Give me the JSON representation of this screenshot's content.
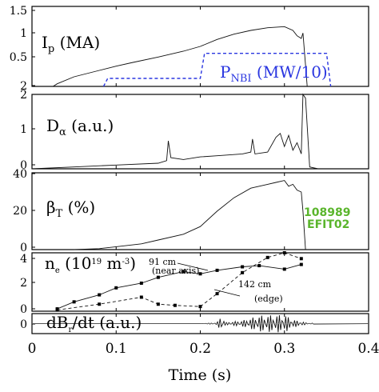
{
  "chart_data": {
    "type": "line",
    "xlabel": "Time (s)",
    "xlim": [
      0,
      0.4
    ],
    "xticks": [
      "0",
      "0.1",
      "0.2",
      "0.3",
      "0.4"
    ],
    "panels": [
      {
        "id": "ip",
        "label_main": "I",
        "label_sub": "p",
        "label_tail": " (MA)",
        "yticks": [
          "1.5",
          "1",
          "0.5",
          "2"
        ],
        "ylim": [
          0,
          1.5
        ],
        "series": [
          {
            "name": "Ip",
            "x": [
              0.025,
              0.03,
              0.05,
              0.08,
              0.1,
              0.12,
              0.15,
              0.18,
              0.2,
              0.22,
              0.24,
              0.26,
              0.28,
              0.3,
              0.31,
              0.315,
              0.32,
              0.322,
              0.325,
              0.327
            ],
            "y": [
              0.0,
              0.05,
              0.18,
              0.3,
              0.38,
              0.45,
              0.55,
              0.66,
              0.75,
              0.88,
              0.98,
              1.05,
              1.1,
              1.12,
              1.05,
              0.95,
              0.9,
              1.0,
              0.4,
              0.0
            ]
          }
        ],
        "nbi": {
          "label_main": "P",
          "label_sub": "NBI",
          "label_tail": " (MW/10)",
          "x": [
            0.085,
            0.09,
            0.2,
            0.205,
            0.35,
            0.355
          ],
          "y": [
            0.0,
            0.15,
            0.15,
            0.62,
            0.62,
            0.0
          ]
        }
      },
      {
        "id": "dalpha",
        "label_main": "D",
        "label_sub": "α",
        "label_tail": " (a.u.)",
        "yticks": [
          "2",
          "1",
          "0"
        ],
        "ylim": [
          0,
          2
        ],
        "series": [
          {
            "name": "Dalpha",
            "x": [
              0.0,
              0.05,
              0.1,
              0.15,
              0.16,
              0.162,
              0.165,
              0.18,
              0.2,
              0.22,
              0.25,
              0.26,
              0.262,
              0.265,
              0.28,
              0.29,
              0.295,
              0.3,
              0.305,
              0.31,
              0.315,
              0.32,
              0.322,
              0.325,
              0.33,
              0.34
            ],
            "y": [
              0.0,
              0.05,
              0.1,
              0.15,
              0.22,
              0.75,
              0.3,
              0.25,
              0.32,
              0.35,
              0.4,
              0.45,
              0.8,
              0.4,
              0.45,
              0.85,
              0.95,
              0.6,
              0.9,
              0.5,
              0.7,
              0.4,
              2.0,
              1.9,
              0.05,
              0.0
            ]
          }
        ]
      },
      {
        "id": "beta",
        "label_main": "β",
        "label_sub": "T",
        "label_tail": " (%)",
        "yticks": [
          "40",
          "20",
          "0"
        ],
        "ylim": [
          0,
          40
        ],
        "series": [
          {
            "name": "BetaT",
            "x": [
              0.05,
              0.08,
              0.1,
              0.13,
              0.15,
              0.18,
              0.2,
              0.22,
              0.24,
              0.26,
              0.28,
              0.29,
              0.3,
              0.305,
              0.31,
              0.315,
              0.32,
              0.322,
              0.325
            ],
            "y": [
              0.0,
              0.5,
              1.5,
              3,
              5,
              8,
              12,
              20,
              27,
              32,
              34,
              35,
              36,
              33,
              34,
              31,
              30,
              20,
              0.0
            ]
          }
        ],
        "shot": [
          "108989",
          "EFIT02"
        ]
      },
      {
        "id": "ne",
        "label_main": "n",
        "label_sub": "e",
        "label_tail": " (10",
        "label_sup": "19",
        "label_tail2": " m",
        "label_sup2": "-3",
        "label_end": ")",
        "yticks": [
          "4",
          "2",
          "0"
        ],
        "ylim": [
          0,
          5
        ],
        "series": [
          {
            "name": "91 cm (near axis)",
            "x": [
              0.03,
              0.05,
              0.08,
              0.1,
              0.13,
              0.15,
              0.18,
              0.2,
              0.22,
              0.25,
              0.27,
              0.3,
              0.32
            ],
            "y": [
              0.2,
              0.8,
              1.4,
              2.0,
              2.4,
              2.9,
              3.4,
              3.2,
              3.5,
              3.8,
              3.9,
              3.6,
              4.0
            ]
          },
          {
            "name": "142 cm (edge)",
            "x": [
              0.03,
              0.08,
              0.13,
              0.15,
              0.17,
              0.2,
              0.22,
              0.25,
              0.28,
              0.3,
              0.32
            ],
            "y": [
              0.1,
              0.6,
              1.2,
              0.6,
              0.5,
              0.4,
              1.5,
              3.3,
              4.6,
              5.0,
              4.5
            ]
          }
        ],
        "annotations": [
          {
            "text": "91 cm",
            "sub": "(near axis)"
          },
          {
            "text": "142 cm",
            "sub": "(edge)"
          }
        ]
      },
      {
        "id": "dbdt",
        "label_main": "dB",
        "label_sub": "r",
        "label_tail": "/dt (a.u.)",
        "yticks": [
          "0"
        ],
        "ylim": [
          -1,
          1
        ],
        "series": [
          {
            "name": "dBr/dt",
            "x": [
              0.0,
              0.2,
              0.22,
              0.225,
              0.23,
              0.25,
              0.27,
              0.3,
              0.31,
              0.32,
              0.33
            ],
            "y": [
              0.0,
              0.0,
              0.1,
              0.9,
              0.1,
              0.3,
              0.8,
              0.9,
              0.4,
              0.2,
              0.0
            ]
          }
        ]
      }
    ]
  }
}
